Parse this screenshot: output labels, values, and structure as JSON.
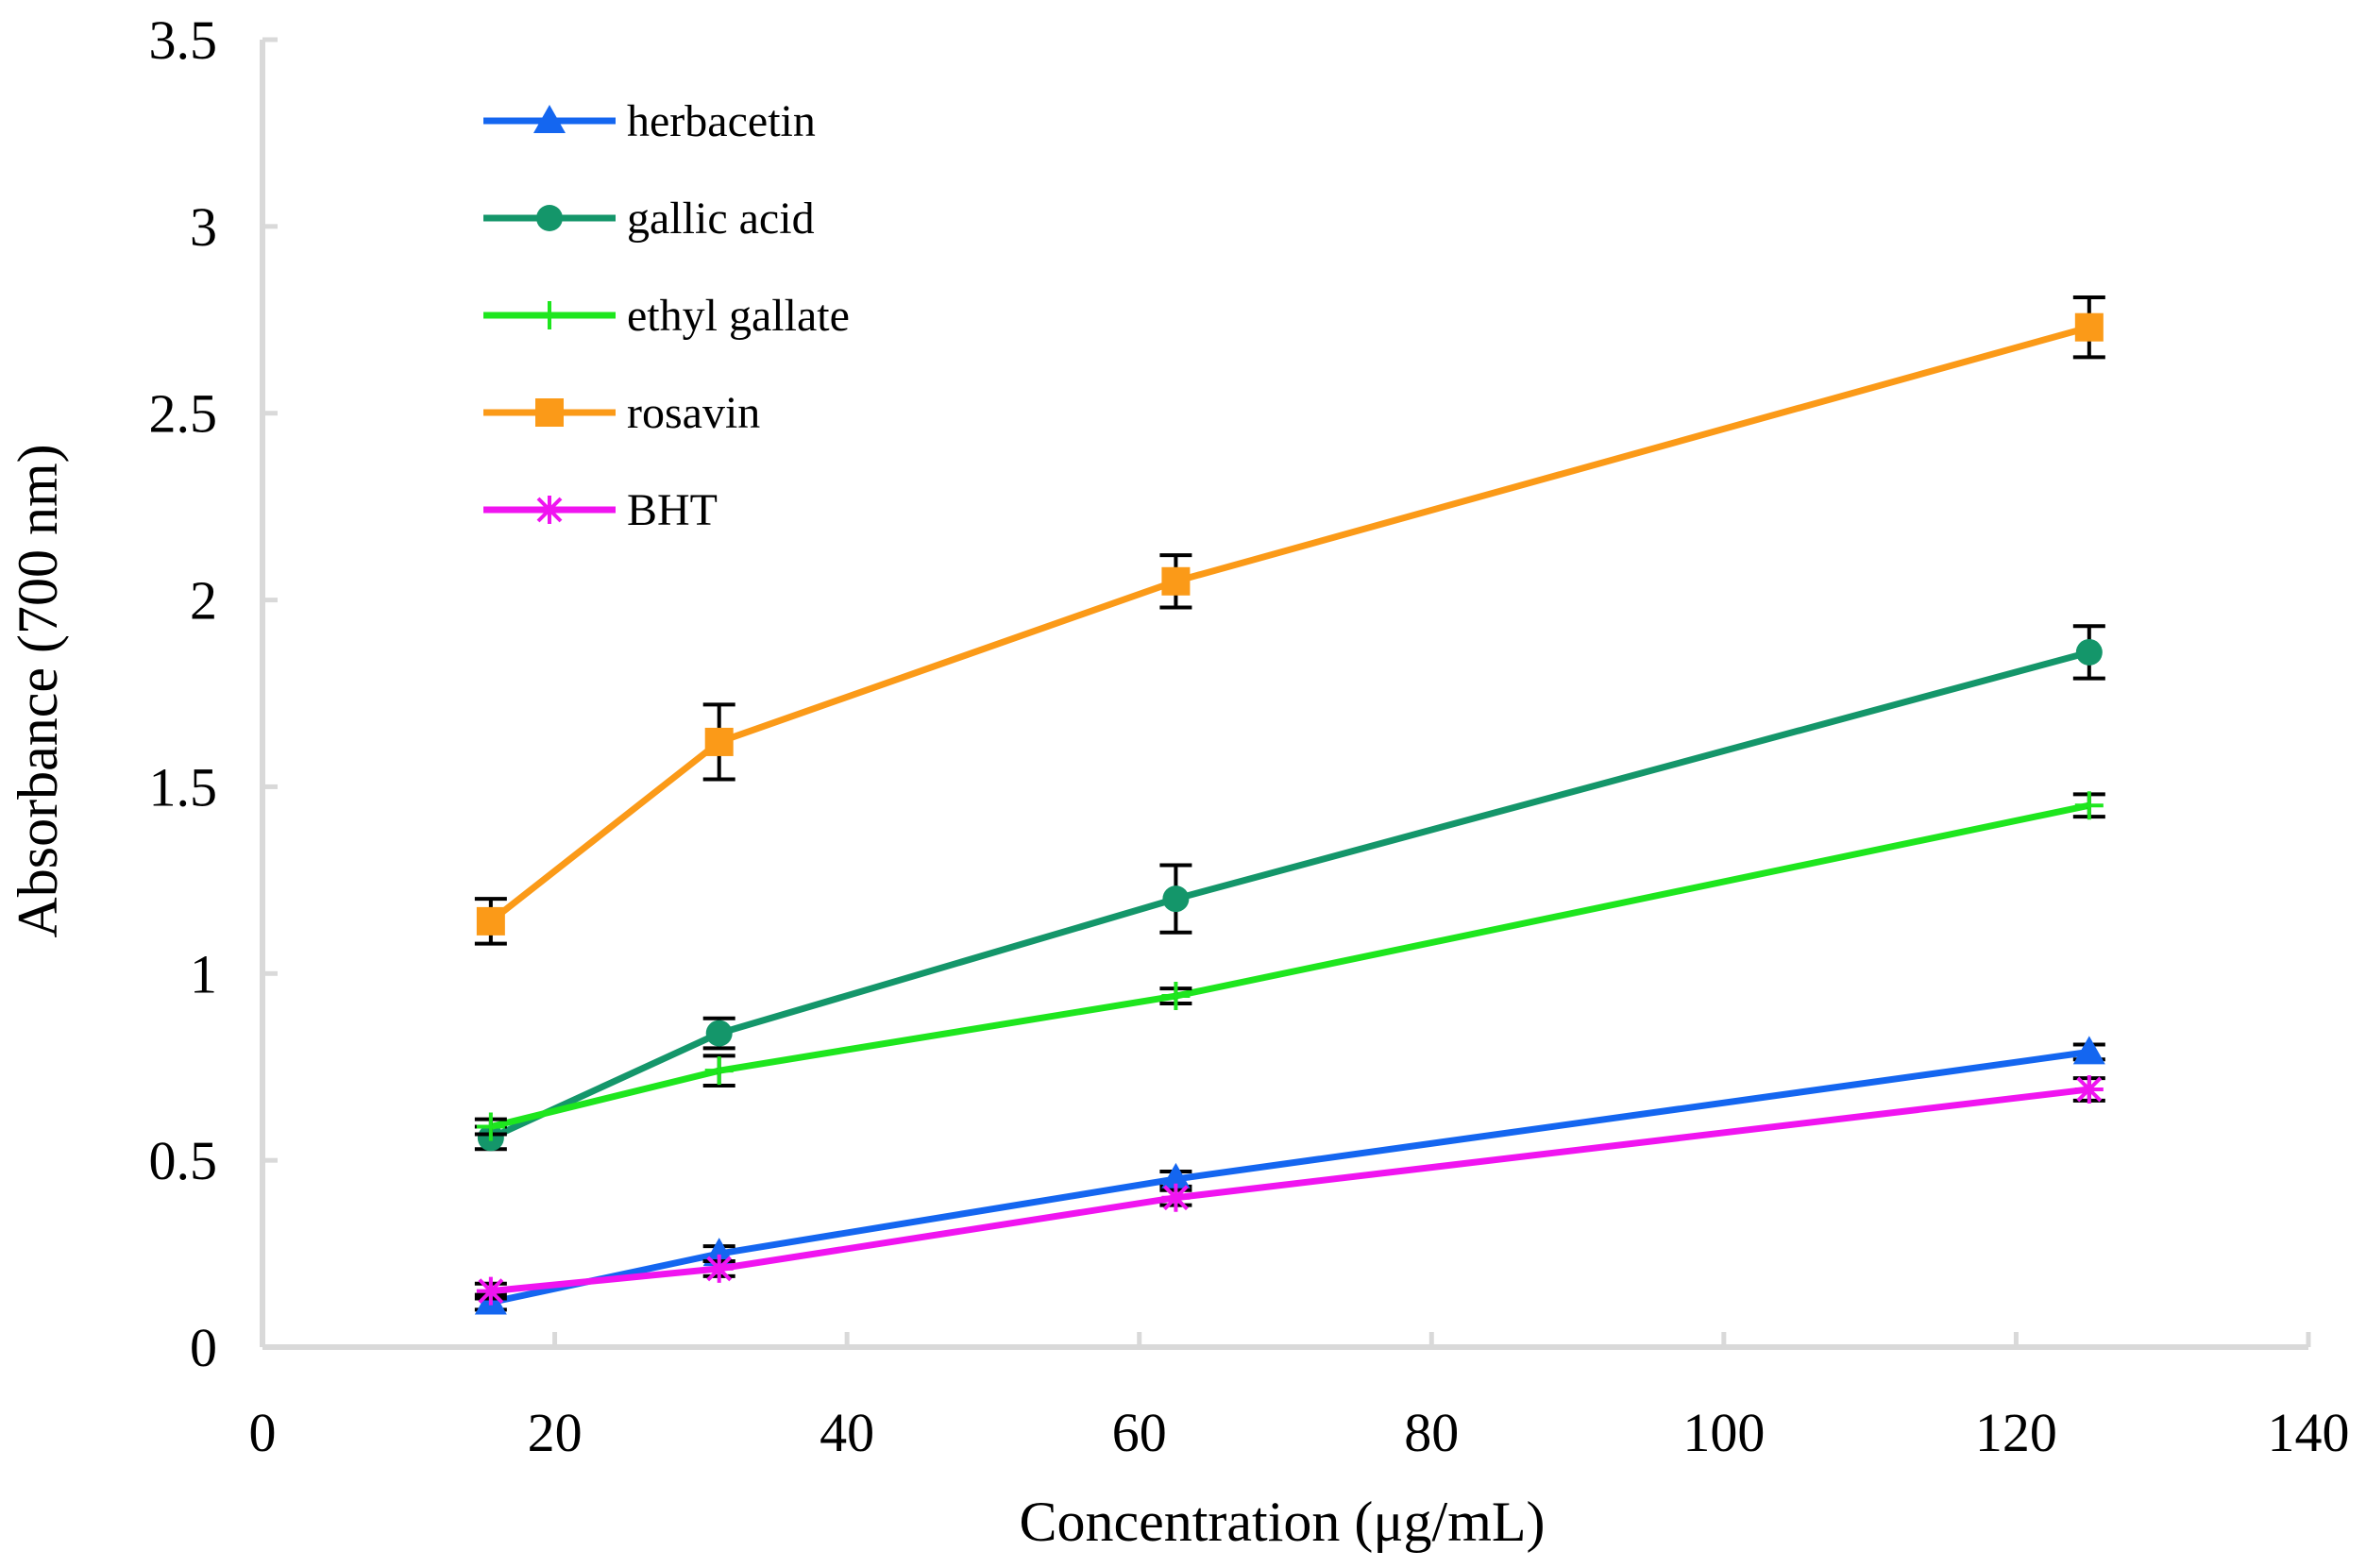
{
  "chart_data": {
    "type": "line",
    "title": "",
    "xlabel": "Concentration (μg/mL)",
    "ylabel": "Absorbance (700 nm)",
    "xlim": [
      0,
      140
    ],
    "ylim": [
      0,
      3.5
    ],
    "x_ticks": [
      0,
      20,
      40,
      60,
      80,
      100,
      120,
      140
    ],
    "y_ticks": [
      0,
      0.5,
      1,
      1.5,
      2,
      2.5,
      3,
      3.5
    ],
    "x_tick_labels": [
      "0",
      "20",
      "40",
      "60",
      "80",
      "100",
      "120",
      "140"
    ],
    "y_tick_labels": [
      "0",
      "0.5",
      "1",
      "1.5",
      "2",
      "2.5",
      "3",
      "3.5"
    ],
    "grid": false,
    "legend_position": "top-left",
    "x": [
      15.625,
      31.25,
      62.5,
      125
    ],
    "series": [
      {
        "name": "herbacetin",
        "values": [
          0.12,
          0.25,
          0.45,
          0.79
        ],
        "errors": [
          0.02,
          0.02,
          0.02,
          0.02
        ],
        "color": "#1466f0",
        "marker": "triangle"
      },
      {
        "name": "gallic acid",
        "values": [
          0.56,
          0.84,
          1.2,
          1.86
        ],
        "errors": [
          0.03,
          0.04,
          0.09,
          0.07
        ],
        "color": "#14966a",
        "marker": "circle"
      },
      {
        "name": "ethyl gallate",
        "values": [
          0.59,
          0.74,
          0.94,
          1.45
        ],
        "errors": [
          0.02,
          0.04,
          0.02,
          0.03
        ],
        "color": "#1ee61e",
        "marker": "plus"
      },
      {
        "name": "rosavin",
        "values": [
          1.14,
          1.62,
          2.05,
          2.73
        ],
        "errors": [
          0.06,
          0.1,
          0.07,
          0.08
        ],
        "color": "#fb9a18",
        "marker": "square"
      },
      {
        "name": "BHT",
        "values": [
          0.15,
          0.21,
          0.4,
          0.69
        ],
        "errors": [
          0.02,
          0.02,
          0.02,
          0.03
        ],
        "color": "#f014f0",
        "marker": "asterisk"
      }
    ],
    "error_bar_color": "#000000",
    "axis_color": "#d9d9d9"
  }
}
